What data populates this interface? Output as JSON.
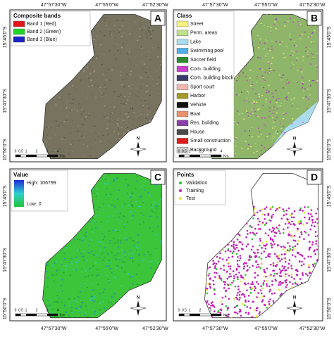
{
  "coordinates": {
    "longitudes": [
      "47°57'30\"W",
      "47°55'0\"W",
      "47°52'30\"W"
    ],
    "latitudes": [
      "15°45'0\"S",
      "15°47'30\"S",
      "15°50'0\"S"
    ]
  },
  "scale_bar": {
    "ticks": [
      "0",
      "0.5",
      "1",
      "2",
      "3",
      "4"
    ],
    "unit": "Km"
  },
  "north": "N",
  "panels": [
    {
      "letter": "A",
      "legend_title": "Composite bands",
      "legend_items": [
        {
          "label": "Band 1 (Red)",
          "color": "#e3141b"
        },
        {
          "label": "Band 2 (Green)",
          "color": "#22d42a"
        },
        {
          "label": "Band 3 (Blue)",
          "color": "#1a22c8"
        }
      ]
    },
    {
      "letter": "B",
      "legend_title": "Class",
      "legend_items": [
        {
          "label": "Street",
          "color": "#f6f27e"
        },
        {
          "label": "Perm. areas",
          "color": "#bfe08a"
        },
        {
          "label": "Lake",
          "color": "#a9dcef"
        },
        {
          "label": "Swimming pool",
          "color": "#4eb0e8"
        },
        {
          "label": "Soccer field",
          "color": "#2e8a2e"
        },
        {
          "label": "Com. building",
          "color": "#c83fcc"
        },
        {
          "label": "Com. building block",
          "color": "#3a3a6a"
        },
        {
          "label": "Sport court",
          "color": "#f4b8b0"
        },
        {
          "label": "Harbor",
          "color": "#a39a2a"
        },
        {
          "label": "Vehicle",
          "color": "#111111"
        },
        {
          "label": "Boat",
          "color": "#e8916e"
        },
        {
          "label": "Res. building",
          "color": "#8b3fa8"
        },
        {
          "label": "House",
          "color": "#4a4a4a"
        },
        {
          "label": "Small construction",
          "color": "#e01b1b"
        },
        {
          "label": "Background",
          "color": "#cfcfcf"
        }
      ]
    },
    {
      "letter": "C",
      "legend_title": "Value",
      "legend_items": [
        {
          "label": "High: 106799"
        },
        {
          "label": "Low: 0"
        }
      ]
    },
    {
      "letter": "D",
      "legend_title": "Points",
      "legend_items": [
        {
          "label": "Validation",
          "color": "#2fc42f"
        },
        {
          "label": "Training",
          "color": "#c21fb8"
        },
        {
          "label": "Test",
          "color": "#e6e23a"
        }
      ]
    }
  ]
}
